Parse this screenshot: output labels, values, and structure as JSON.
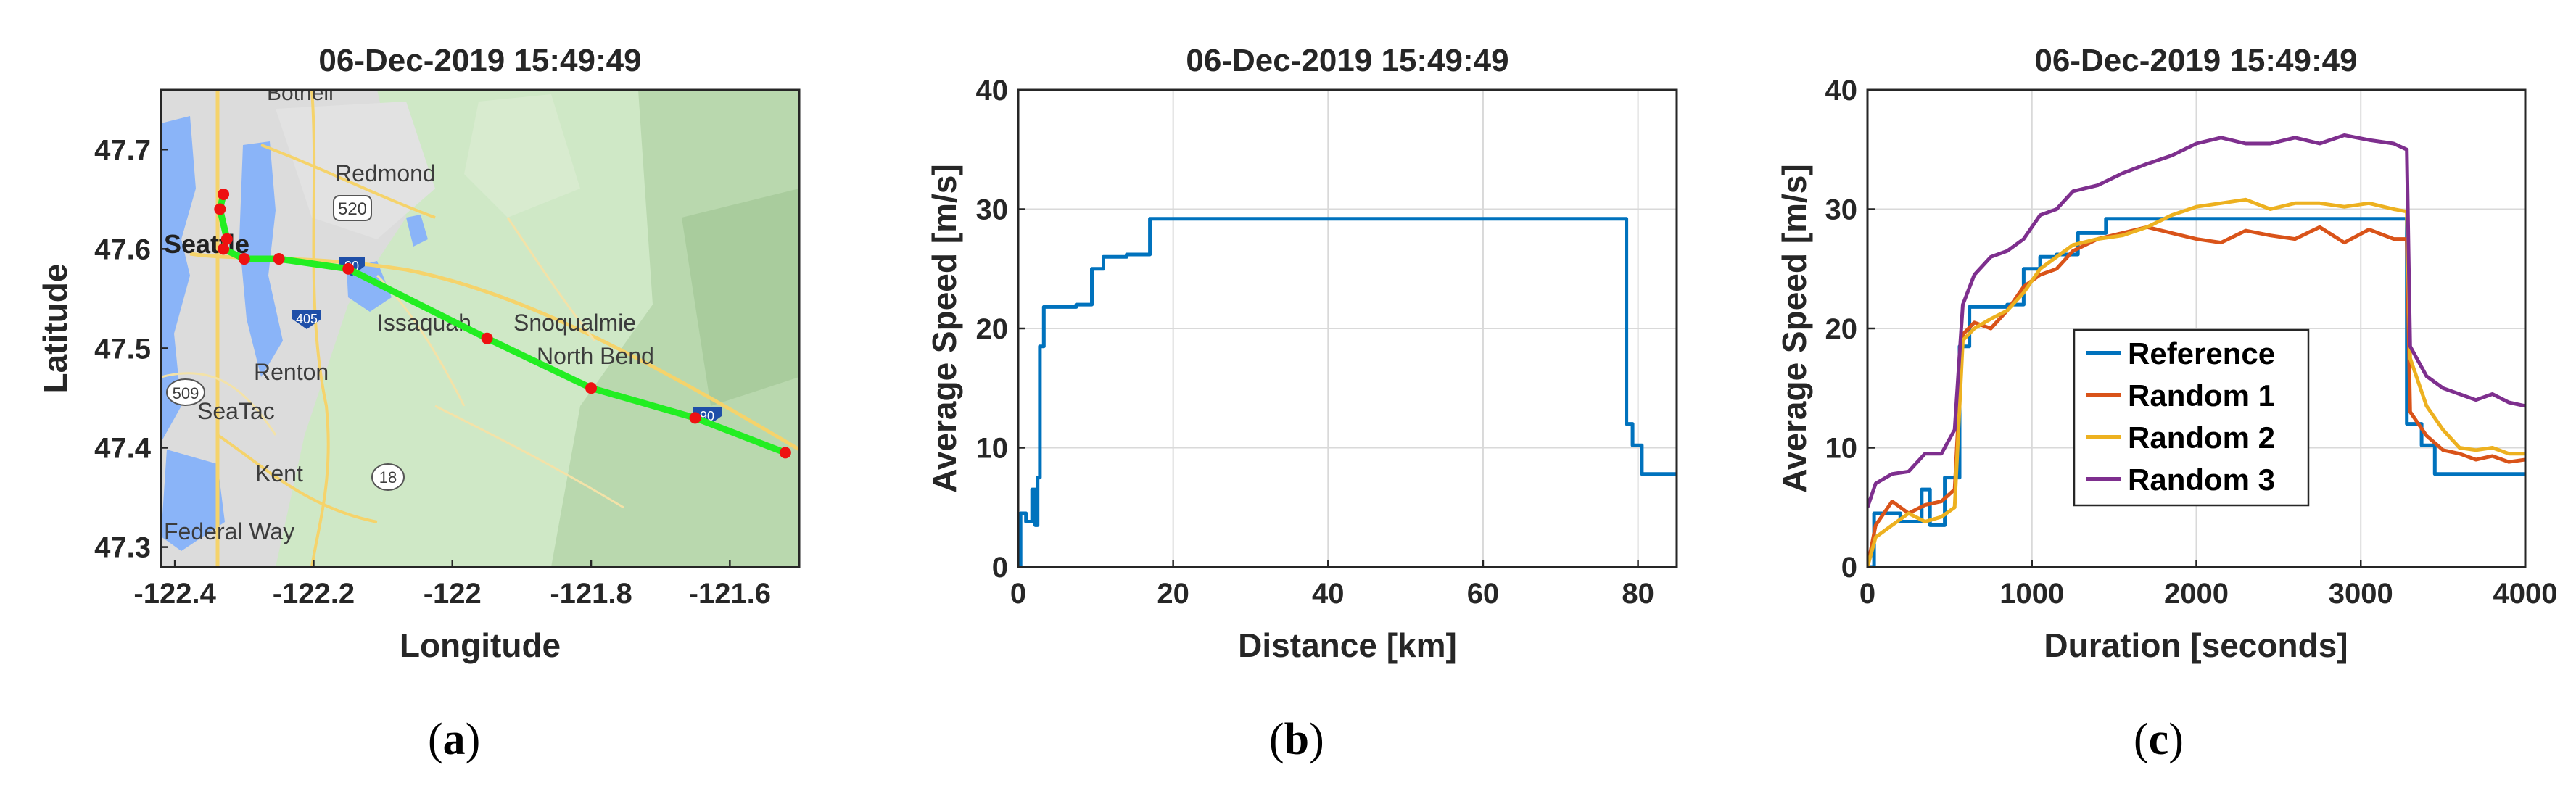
{
  "panels": [
    {
      "caption": "a",
      "title": "06-Dec-2019 15:49:49",
      "xlabel": "Longitude",
      "ylabel": "Latitude",
      "xticks": [
        "-122.4",
        "-122.2",
        "-122",
        "-121.8",
        "-121.6"
      ],
      "yticks": [
        "47.3",
        "47.4",
        "47.5",
        "47.6",
        "47.7"
      ],
      "map_labels": [
        "Bothell",
        "Redmond",
        "520",
        "Seattle",
        "90",
        "405",
        "Issaquah",
        "Snoqualmie",
        "North Bend",
        "Renton",
        "509",
        "SeaTac",
        "90",
        "Kent",
        "18",
        "Federal Way"
      ]
    },
    {
      "caption": "b",
      "title": "06-Dec-2019 15:49:49",
      "xlabel": "Distance [km]",
      "ylabel": "Average Speed [m/s]",
      "xticks": [
        "0",
        "20",
        "40",
        "60",
        "80"
      ],
      "yticks": [
        "0",
        "10",
        "20",
        "30",
        "40"
      ]
    },
    {
      "caption": "c",
      "title": "06-Dec-2019 15:49:49",
      "xlabel": "Duration [seconds]",
      "ylabel": "Average Speed [m/s]",
      "xticks": [
        "0",
        "1000",
        "2000",
        "3000",
        "4000"
      ],
      "yticks": [
        "0",
        "10",
        "20",
        "30",
        "40"
      ],
      "legend": [
        "Reference",
        "Random 1",
        "Random 2",
        "Random 3"
      ]
    }
  ],
  "colors": {
    "reference": "#0072BD",
    "random1": "#D95319",
    "random2": "#EDB120",
    "random3": "#7E2F8E",
    "route": "#22ee22",
    "route_points": "#ee1111",
    "grid": "#d9d9d9"
  },
  "chart_data": [
    {
      "type": "scatter",
      "xlim": [
        -122.42,
        -121.5
      ],
      "ylim": [
        47.28,
        47.76
      ],
      "grid": false,
      "route": {
        "lon": [
          -122.33,
          -122.335,
          -122.325,
          -122.33,
          -122.3,
          -122.25,
          -122.15,
          -121.95,
          -121.8,
          -121.65,
          -121.52
        ],
        "lat": [
          47.655,
          47.64,
          47.61,
          47.6,
          47.59,
          47.59,
          47.58,
          47.51,
          47.46,
          47.43,
          47.395
        ]
      }
    },
    {
      "type": "line",
      "xlim": [
        0,
        85
      ],
      "ylim": [
        0,
        40
      ],
      "grid": true,
      "series": [
        {
          "name": "",
          "x": [
            0,
            0.3,
            0.3,
            1.0,
            1.0,
            1.8,
            1.8,
            2.2,
            2.2,
            2.5,
            2.5,
            2.8,
            2.8,
            3.3,
            3.3,
            7.5,
            7.5,
            9.5,
            9.5,
            11.0,
            11.0,
            14.0,
            14.0,
            17.0,
            17.0,
            78.5,
            78.5,
            79.3,
            79.3,
            80.5,
            80.5,
            85
          ],
          "y": [
            0,
            0,
            4.5,
            4.5,
            3.8,
            3.8,
            6.5,
            6.5,
            3.5,
            3.5,
            7.5,
            7.5,
            18.5,
            18.5,
            21.8,
            21.8,
            22.0,
            22.0,
            25.0,
            25.0,
            26.0,
            26.0,
            26.2,
            26.2,
            29.2,
            29.2,
            12.0,
            12.0,
            10.2,
            10.2,
            7.8,
            7.8
          ]
        }
      ]
    },
    {
      "type": "line",
      "xlim": [
        0,
        4000
      ],
      "ylim": [
        0,
        40
      ],
      "grid": true,
      "legend_position": "center",
      "series": [
        {
          "name": "Reference",
          "x": [
            0,
            40,
            40,
            200,
            200,
            330,
            330,
            380,
            380,
            470,
            470,
            560,
            560,
            620,
            620,
            850,
            850,
            950,
            950,
            1050,
            1050,
            1150,
            1150,
            1280,
            1280,
            1450,
            1450,
            3280,
            3280,
            3370,
            3370,
            3450,
            3450,
            3550,
            3550,
            4000
          ],
          "y": [
            0,
            0,
            4.5,
            4.5,
            3.8,
            3.8,
            6.5,
            6.5,
            3.5,
            3.5,
            7.5,
            7.5,
            18.5,
            18.5,
            21.8,
            21.8,
            22.0,
            22.0,
            25.0,
            25.0,
            26.0,
            26.0,
            26.2,
            26.2,
            28.0,
            28.0,
            29.2,
            29.2,
            12.0,
            12.0,
            10.2,
            10.2,
            7.8,
            7.8,
            7.8,
            7.8
          ]
        },
        {
          "name": "Random 1",
          "x": [
            0,
            50,
            150,
            250,
            350,
            450,
            530,
            580,
            650,
            750,
            850,
            950,
            1050,
            1150,
            1250,
            1400,
            1550,
            1700,
            1850,
            2000,
            2150,
            2300,
            2450,
            2600,
            2750,
            2900,
            3050,
            3200,
            3280,
            3300,
            3400,
            3500,
            3600,
            3700,
            3800,
            3900,
            4000
          ],
          "y": [
            0,
            3.5,
            5.5,
            4.5,
            5.2,
            5.5,
            6.5,
            19.5,
            20.5,
            20.0,
            21.5,
            23.5,
            24.5,
            25.0,
            26.5,
            27.5,
            28.0,
            28.5,
            28.0,
            27.5,
            27.2,
            28.2,
            27.8,
            27.5,
            28.5,
            27.2,
            28.3,
            27.5,
            27.5,
            13.0,
            11.0,
            9.8,
            9.5,
            9.0,
            9.3,
            8.8,
            9.0
          ]
        },
        {
          "name": "Random 2",
          "x": [
            0,
            50,
            150,
            250,
            350,
            450,
            530,
            580,
            650,
            750,
            850,
            950,
            1050,
            1150,
            1250,
            1400,
            1550,
            1700,
            1850,
            2000,
            2150,
            2300,
            2450,
            2600,
            2750,
            2900,
            3050,
            3200,
            3280,
            3300,
            3400,
            3500,
            3600,
            3700,
            3800,
            3900,
            4000
          ],
          "y": [
            0,
            2.5,
            3.5,
            4.5,
            3.8,
            4.2,
            5.0,
            19.0,
            20.0,
            20.8,
            21.5,
            23.0,
            25.0,
            26.0,
            27.0,
            27.5,
            27.8,
            28.5,
            29.5,
            30.2,
            30.5,
            30.8,
            30.0,
            30.5,
            30.5,
            30.2,
            30.5,
            30.0,
            29.8,
            17.5,
            13.5,
            11.5,
            10.0,
            9.8,
            10.0,
            9.5,
            9.5
          ]
        },
        {
          "name": "Random 3",
          "x": [
            0,
            50,
            150,
            250,
            350,
            450,
            530,
            580,
            650,
            750,
            850,
            950,
            1050,
            1150,
            1250,
            1400,
            1550,
            1700,
            1850,
            2000,
            2150,
            2300,
            2450,
            2600,
            2750,
            2900,
            3050,
            3200,
            3280,
            3300,
            3400,
            3500,
            3600,
            3700,
            3800,
            3900,
            4000
          ],
          "y": [
            5.0,
            7.0,
            7.8,
            8.0,
            9.5,
            9.5,
            11.5,
            22.0,
            24.5,
            26.0,
            26.5,
            27.5,
            29.5,
            30.0,
            31.5,
            32.0,
            33.0,
            33.8,
            34.5,
            35.5,
            36.0,
            35.5,
            35.5,
            36.0,
            35.5,
            36.2,
            35.8,
            35.5,
            35.0,
            18.5,
            16.0,
            15.0,
            14.5,
            14.0,
            14.5,
            13.8,
            13.5
          ]
        }
      ]
    }
  ]
}
